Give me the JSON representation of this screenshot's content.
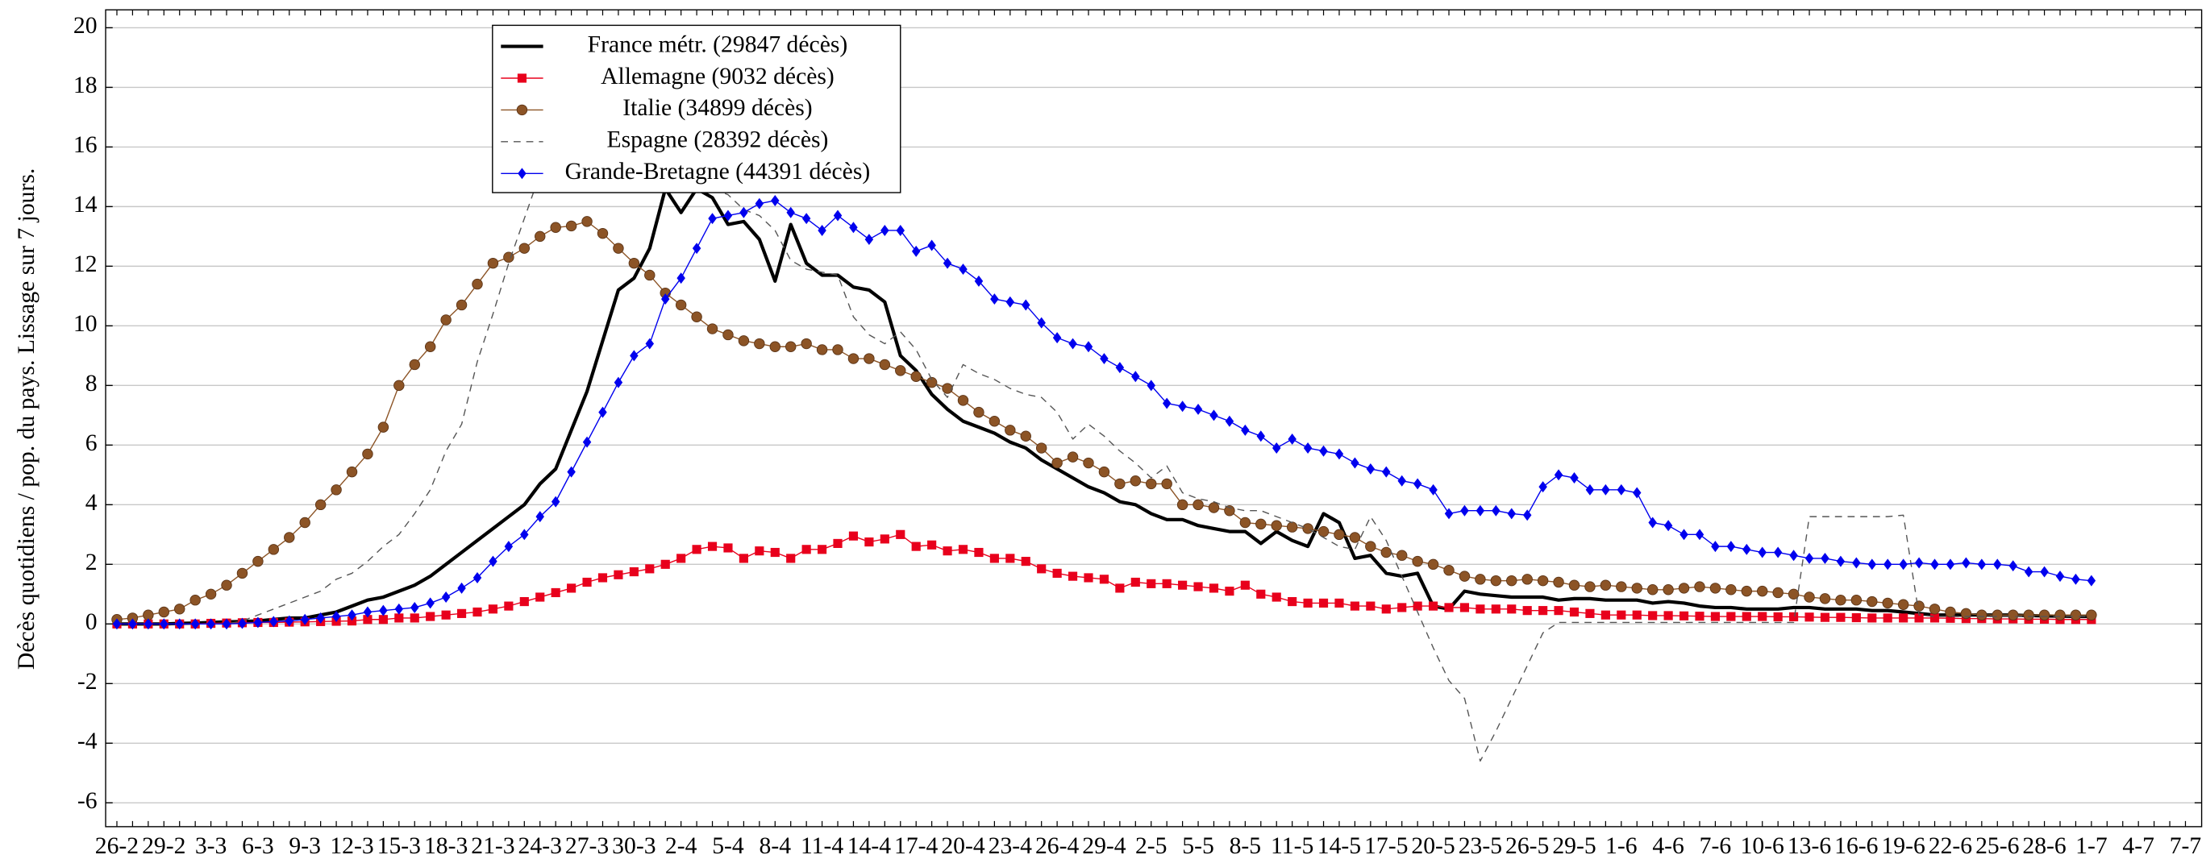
{
  "chart_data": {
    "type": "line",
    "y_label": "Décès quotidiens / pop. du pays. Lissage sur 7 jours.",
    "categories": [
      "26-2",
      null,
      null,
      "29-2",
      null,
      null,
      "3-3",
      null,
      null,
      "6-3",
      null,
      null,
      "9-3",
      null,
      null,
      "12-3",
      null,
      null,
      "15-3",
      null,
      null,
      "18-3",
      null,
      null,
      "21-3",
      null,
      null,
      "24-3",
      null,
      null,
      "27-3",
      null,
      null,
      "30-3",
      null,
      null,
      "2-4",
      null,
      null,
      "5-4",
      null,
      null,
      "8-4",
      null,
      null,
      "11-4",
      null,
      null,
      "14-4",
      null,
      null,
      "17-4",
      null,
      null,
      "20-4",
      null,
      null,
      "23-4",
      null,
      null,
      "26-4",
      null,
      null,
      "29-4",
      null,
      null,
      "2-5",
      null,
      null,
      "5-5",
      null,
      null,
      "8-5",
      null,
      null,
      "11-5",
      null,
      null,
      "14-5",
      null,
      null,
      "17-5",
      null,
      null,
      "20-5",
      null,
      null,
      "23-5",
      null,
      null,
      "26-5",
      null,
      null,
      "29-5",
      null,
      null,
      "1-6",
      null,
      null,
      "4-6",
      null,
      null,
      "7-6",
      null,
      null,
      "10-6",
      null,
      null,
      "13-6",
      null,
      null,
      "16-6",
      null,
      null,
      "19-6",
      null,
      null,
      "22-6",
      null,
      null,
      "25-6",
      null,
      null,
      "28-6",
      null,
      null,
      "1-7",
      null,
      null,
      "4-7",
      null,
      null,
      "7-7"
    ],
    "series": [
      {
        "name": "France métr. (29847 décès)",
        "color": "#000000",
        "marker": "none",
        "dash": false,
        "width": 2.4,
        "values": [
          0,
          0,
          0,
          0,
          0.02,
          0.03,
          0.05,
          0.07,
          0.08,
          0.1,
          0.15,
          0.2,
          0.2,
          0.3,
          0.4,
          0.6,
          0.8,
          0.9,
          1.1,
          1.3,
          1.6,
          2.0,
          2.4,
          2.8,
          3.2,
          3.6,
          4.0,
          4.7,
          5.2,
          6.5,
          7.8,
          9.5,
          11.2,
          11.6,
          12.6,
          14.6,
          13.8,
          14.6,
          14.3,
          13.4,
          13.5,
          12.9,
          11.5,
          13.4,
          12.1,
          11.7,
          11.7,
          11.3,
          11.2,
          10.8,
          9.0,
          8.5,
          7.7,
          7.2,
          6.8,
          6.6,
          6.4,
          6.1,
          5.9,
          5.5,
          5.2,
          4.9,
          4.6,
          4.4,
          4.1,
          4.0,
          3.7,
          3.5,
          3.5,
          3.3,
          3.2,
          3.1,
          3.1,
          2.7,
          3.1,
          2.8,
          2.6,
          3.7,
          3.4,
          2.2,
          2.3,
          1.7,
          1.6,
          1.7,
          0.6,
          0.5,
          1.1,
          1.0,
          0.95,
          0.9,
          0.9,
          0.9,
          0.8,
          0.85,
          0.85,
          0.8,
          0.8,
          0.8,
          0.7,
          0.75,
          0.7,
          0.6,
          0.55,
          0.55,
          0.5,
          0.5,
          0.5,
          0.55,
          0.55,
          0.5,
          0.5,
          0.5,
          0.45,
          0.45,
          0.4,
          0.35,
          0.3,
          0.3,
          0.3,
          0.3,
          0.3,
          0.3,
          0.28,
          0.27,
          0.26,
          0.25,
          0.25,
          null,
          null,
          null,
          null,
          null,
          null
        ]
      },
      {
        "name": "Allemagne (9032 décès)",
        "color": "#e8001c",
        "marker": "square",
        "dash": false,
        "width": 0.8,
        "values": [
          0,
          0,
          0,
          0,
          0,
          0,
          0.02,
          0.03,
          0.04,
          0.05,
          0.05,
          0.06,
          0.07,
          0.08,
          0.09,
          0.1,
          0.15,
          0.15,
          0.2,
          0.2,
          0.25,
          0.3,
          0.35,
          0.4,
          0.5,
          0.6,
          0.75,
          0.9,
          1.05,
          1.2,
          1.4,
          1.55,
          1.65,
          1.75,
          1.85,
          2.0,
          2.2,
          2.5,
          2.6,
          2.55,
          2.2,
          2.45,
          2.4,
          2.2,
          2.5,
          2.5,
          2.7,
          2.95,
          2.75,
          2.85,
          3.0,
          2.6,
          2.65,
          2.45,
          2.5,
          2.4,
          2.2,
          2.2,
          2.1,
          1.85,
          1.7,
          1.6,
          1.55,
          1.5,
          1.2,
          1.4,
          1.35,
          1.35,
          1.3,
          1.25,
          1.2,
          1.1,
          1.3,
          1.0,
          0.9,
          0.75,
          0.7,
          0.7,
          0.7,
          0.6,
          0.6,
          0.5,
          0.55,
          0.6,
          0.6,
          0.55,
          0.55,
          0.5,
          0.5,
          0.5,
          0.45,
          0.45,
          0.45,
          0.4,
          0.35,
          0.3,
          0.3,
          0.3,
          0.28,
          0.28,
          0.27,
          0.26,
          0.25,
          0.25,
          0.25,
          0.25,
          0.24,
          0.24,
          0.23,
          0.22,
          0.22,
          0.21,
          0.2,
          0.2,
          0.2,
          0.2,
          0.2,
          0.19,
          0.18,
          0.18,
          0.17,
          0.17,
          0.16,
          0.16,
          0.15,
          0.15,
          0.15,
          null,
          null,
          null,
          null,
          null,
          null
        ]
      },
      {
        "name": "Italie (34899 décès)",
        "color": "#8c5426",
        "marker": "circle",
        "dash": false,
        "width": 0.8,
        "values": [
          0.15,
          0.2,
          0.3,
          0.4,
          0.5,
          0.8,
          1.0,
          1.3,
          1.7,
          2.1,
          2.5,
          2.9,
          3.4,
          4.0,
          4.5,
          5.1,
          5.7,
          6.6,
          8.0,
          8.7,
          9.3,
          10.2,
          10.7,
          11.4,
          12.1,
          12.3,
          12.6,
          13.0,
          13.3,
          13.35,
          13.5,
          13.1,
          12.6,
          12.1,
          11.7,
          11.1,
          10.7,
          10.3,
          9.9,
          9.7,
          9.5,
          9.4,
          9.3,
          9.3,
          9.4,
          9.2,
          9.2,
          8.9,
          8.9,
          8.7,
          8.5,
          8.3,
          8.1,
          7.9,
          7.5,
          7.1,
          6.8,
          6.5,
          6.3,
          5.9,
          5.4,
          5.6,
          5.4,
          5.1,
          4.7,
          4.8,
          4.7,
          4.7,
          4.0,
          4.0,
          3.9,
          3.8,
          3.4,
          3.35,
          3.3,
          3.25,
          3.2,
          3.1,
          3.0,
          2.9,
          2.6,
          2.4,
          2.3,
          2.1,
          2.0,
          1.8,
          1.6,
          1.5,
          1.45,
          1.45,
          1.5,
          1.45,
          1.4,
          1.3,
          1.25,
          1.3,
          1.25,
          1.2,
          1.15,
          1.15,
          1.2,
          1.25,
          1.2,
          1.15,
          1.1,
          1.1,
          1.05,
          1.0,
          0.9,
          0.85,
          0.8,
          0.8,
          0.75,
          0.7,
          0.65,
          0.6,
          0.5,
          0.4,
          0.35,
          0.3,
          0.3,
          0.3,
          0.3,
          0.3,
          0.3,
          0.3,
          0.3,
          null,
          null,
          null,
          null,
          null,
          null
        ]
      },
      {
        "name": "Espagne (28392 décès)",
        "color": "#555555",
        "marker": "none",
        "dash": true,
        "width": 0.8,
        "values": [
          0,
          0,
          0,
          0,
          0,
          0,
          0,
          0,
          0.1,
          0.3,
          0.5,
          0.7,
          0.9,
          1.1,
          1.5,
          1.7,
          2.1,
          2.6,
          3.0,
          3.7,
          4.5,
          5.8,
          6.7,
          8.8,
          10.4,
          12.1,
          13.6,
          15.1,
          16.3,
          17.2,
          17.8,
          18.2,
          18.3,
          18.0,
          17.3,
          16.4,
          15.6,
          15.0,
          14.6,
          14.4,
          13.9,
          13.7,
          13.2,
          12.2,
          11.9,
          11.8,
          11.7,
          10.3,
          9.7,
          9.4,
          9.8,
          9.2,
          8.2,
          7.6,
          8.7,
          8.4,
          8.2,
          7.9,
          7.7,
          7.6,
          7.1,
          6.2,
          6.7,
          6.3,
          5.8,
          5.4,
          4.9,
          5.3,
          4.4,
          4.2,
          4.1,
          3.9,
          3.8,
          3.8,
          3.6,
          3.4,
          3.2,
          2.9,
          2.6,
          2.5,
          3.6,
          2.8,
          1.6,
          0.4,
          -0.8,
          -1.9,
          -2.5,
          -4.6,
          -3.6,
          -2.5,
          -1.4,
          -0.3,
          0.05,
          0.05,
          0.05,
          0.05,
          0.05,
          0.05,
          0.05,
          0.05,
          0.05,
          0.05,
          0.05,
          0.05,
          0.05,
          0.05,
          0.05,
          0.05,
          3.6,
          3.6,
          3.6,
          3.6,
          3.6,
          3.6,
          3.65,
          0.3,
          0.25,
          0.25,
          0.25,
          0.25,
          0.25,
          0.25,
          0.25,
          0.25,
          0.25,
          0.25,
          0.25,
          null,
          null,
          null,
          null,
          null,
          null
        ]
      },
      {
        "name": "Grande-Bretagne (44391 décès)",
        "color": "#0000ee",
        "marker": "diamond",
        "dash": false,
        "width": 0.8,
        "values": [
          0,
          0,
          0,
          0,
          0,
          0,
          0,
          0,
          0.02,
          0.05,
          0.08,
          0.1,
          0.15,
          0.2,
          0.25,
          0.3,
          0.4,
          0.45,
          0.5,
          0.55,
          0.7,
          0.9,
          1.2,
          1.55,
          2.1,
          2.6,
          3.0,
          3.6,
          4.1,
          5.1,
          6.1,
          7.1,
          8.1,
          9.0,
          9.4,
          10.9,
          11.6,
          12.6,
          13.6,
          13.7,
          13.8,
          14.1,
          14.2,
          13.8,
          13.6,
          13.2,
          13.7,
          13.3,
          12.9,
          13.2,
          13.2,
          12.5,
          12.7,
          12.1,
          11.9,
          11.5,
          10.9,
          10.8,
          10.7,
          10.1,
          9.6,
          9.4,
          9.3,
          8.9,
          8.6,
          8.3,
          8.0,
          7.4,
          7.3,
          7.2,
          7.0,
          6.8,
          6.5,
          6.3,
          5.9,
          6.2,
          5.9,
          5.8,
          5.7,
          5.4,
          5.2,
          5.1,
          4.8,
          4.7,
          4.5,
          3.7,
          3.8,
          3.8,
          3.8,
          3.7,
          3.65,
          4.6,
          5.0,
          4.9,
          4.5,
          4.5,
          4.5,
          4.4,
          3.4,
          3.3,
          3.0,
          3.0,
          2.6,
          2.6,
          2.5,
          2.4,
          2.4,
          2.3,
          2.2,
          2.2,
          2.1,
          2.05,
          2.0,
          2.0,
          2.0,
          2.05,
          2.0,
          2.0,
          2.05,
          2.0,
          2.0,
          1.95,
          1.75,
          1.75,
          1.6,
          1.5,
          1.45,
          null,
          null,
          null,
          null,
          null,
          null
        ]
      }
    ],
    "ylim": [
      -6.8,
      20.6
    ],
    "yticks": [
      -6,
      -4,
      -2,
      0,
      2,
      4,
      6,
      8,
      10,
      12,
      14,
      16,
      18,
      20
    ],
    "grid": true,
    "legend_position": "upper left"
  }
}
